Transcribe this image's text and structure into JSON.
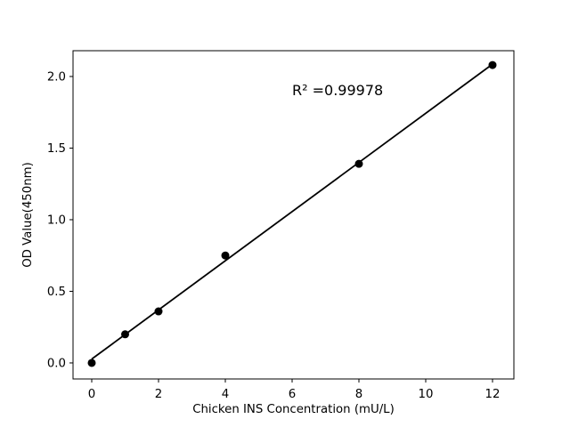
{
  "figure": {
    "background": "#ffffff"
  },
  "chart_data": {
    "type": "scatter",
    "title": "",
    "xlabel": "Chicken INS Concentration (mU/L)",
    "ylabel": "OD Value(450nm)",
    "x": [
      0,
      1,
      2,
      4,
      8,
      12
    ],
    "y": [
      0.0,
      0.2,
      0.36,
      0.75,
      1.39,
      2.08
    ],
    "fit_line": {
      "type": "linear",
      "slope": 0.1716,
      "intercept": 0.027,
      "x_start": 0,
      "x_end": 12
    },
    "annotation": {
      "text": "R² =0.99978",
      "x": 6,
      "y": 1.9,
      "font_size": 16
    },
    "x_ticks": [
      0,
      2,
      4,
      6,
      8,
      10,
      12
    ],
    "y_tick_labels": [
      "0.0",
      "0.5",
      "1.0",
      "1.5",
      "2.0"
    ],
    "y_tick_values": [
      0.0,
      0.5,
      1.0,
      1.5,
      2.0
    ],
    "xlim": [
      -0.56,
      12.64
    ],
    "ylim": [
      -0.112,
      2.18
    ],
    "grid": false,
    "legend": null,
    "marker": {
      "shape": "circle",
      "radius": 4.5
    },
    "colors": {
      "line": "#000000",
      "marker": "#000000",
      "text": "#000000",
      "spine": "#000000",
      "background": "#ffffff"
    }
  }
}
